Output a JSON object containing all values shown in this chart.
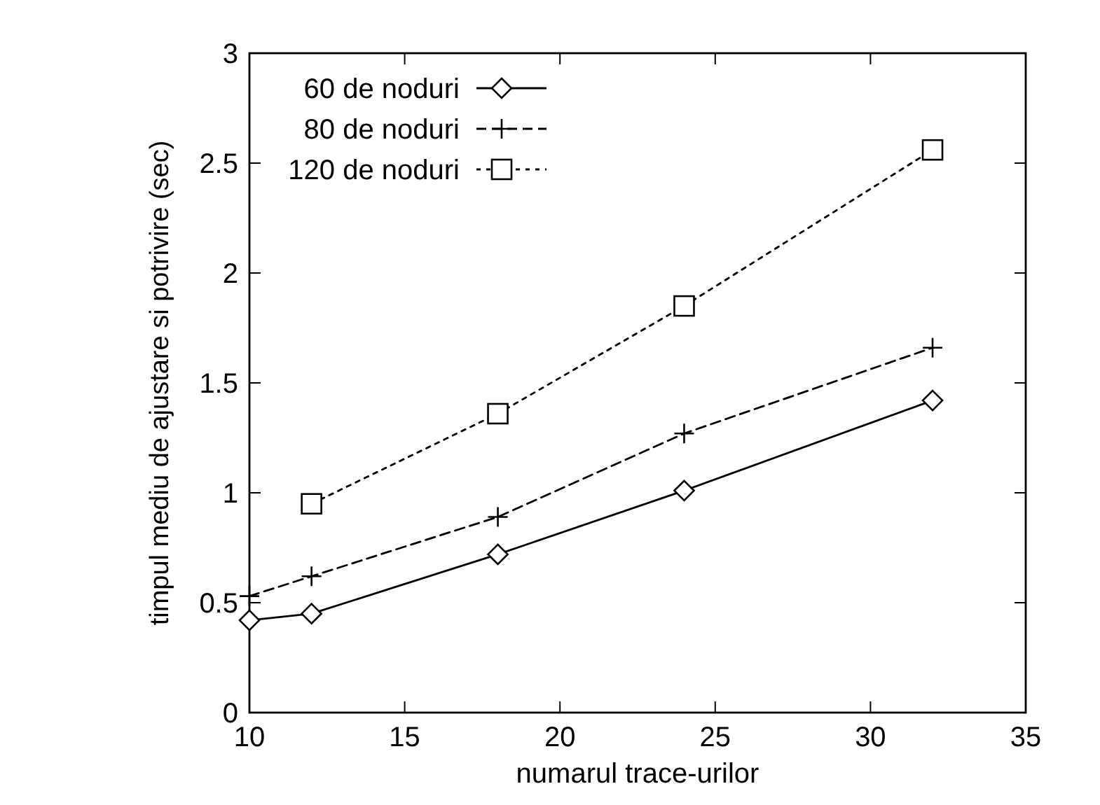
{
  "chart_data": {
    "type": "line",
    "xlabel": "numarul trace-urilor",
    "ylabel": "timpul mediu de ajustare si potrivire (sec)",
    "xlim": [
      10,
      35
    ],
    "ylim": [
      0,
      3
    ],
    "xticks": [
      10,
      15,
      20,
      25,
      30,
      35
    ],
    "yticks": [
      0,
      0.5,
      1,
      1.5,
      2,
      2.5,
      3
    ],
    "grid": false,
    "legend": "top left",
    "series": [
      {
        "name": "60 de noduri",
        "color": "#000000",
        "marker": "diamond",
        "line_style": "solid",
        "x": [
          10,
          12,
          18,
          24,
          32
        ],
        "values": [
          0.42,
          0.45,
          0.72,
          1.01,
          1.42
        ]
      },
      {
        "name": "80 de noduri",
        "color": "#000000",
        "marker": "cross",
        "line_style": "dashed",
        "x": [
          10,
          12,
          18,
          24,
          32
        ],
        "values": [
          0.53,
          0.62,
          0.89,
          1.27,
          1.66
        ]
      },
      {
        "name": "120 de noduri",
        "color": "#000000",
        "marker": "square",
        "line_style": "dotted",
        "x": [
          12,
          18,
          24,
          32
        ],
        "values": [
          0.95,
          1.36,
          1.85,
          2.56
        ]
      }
    ]
  }
}
